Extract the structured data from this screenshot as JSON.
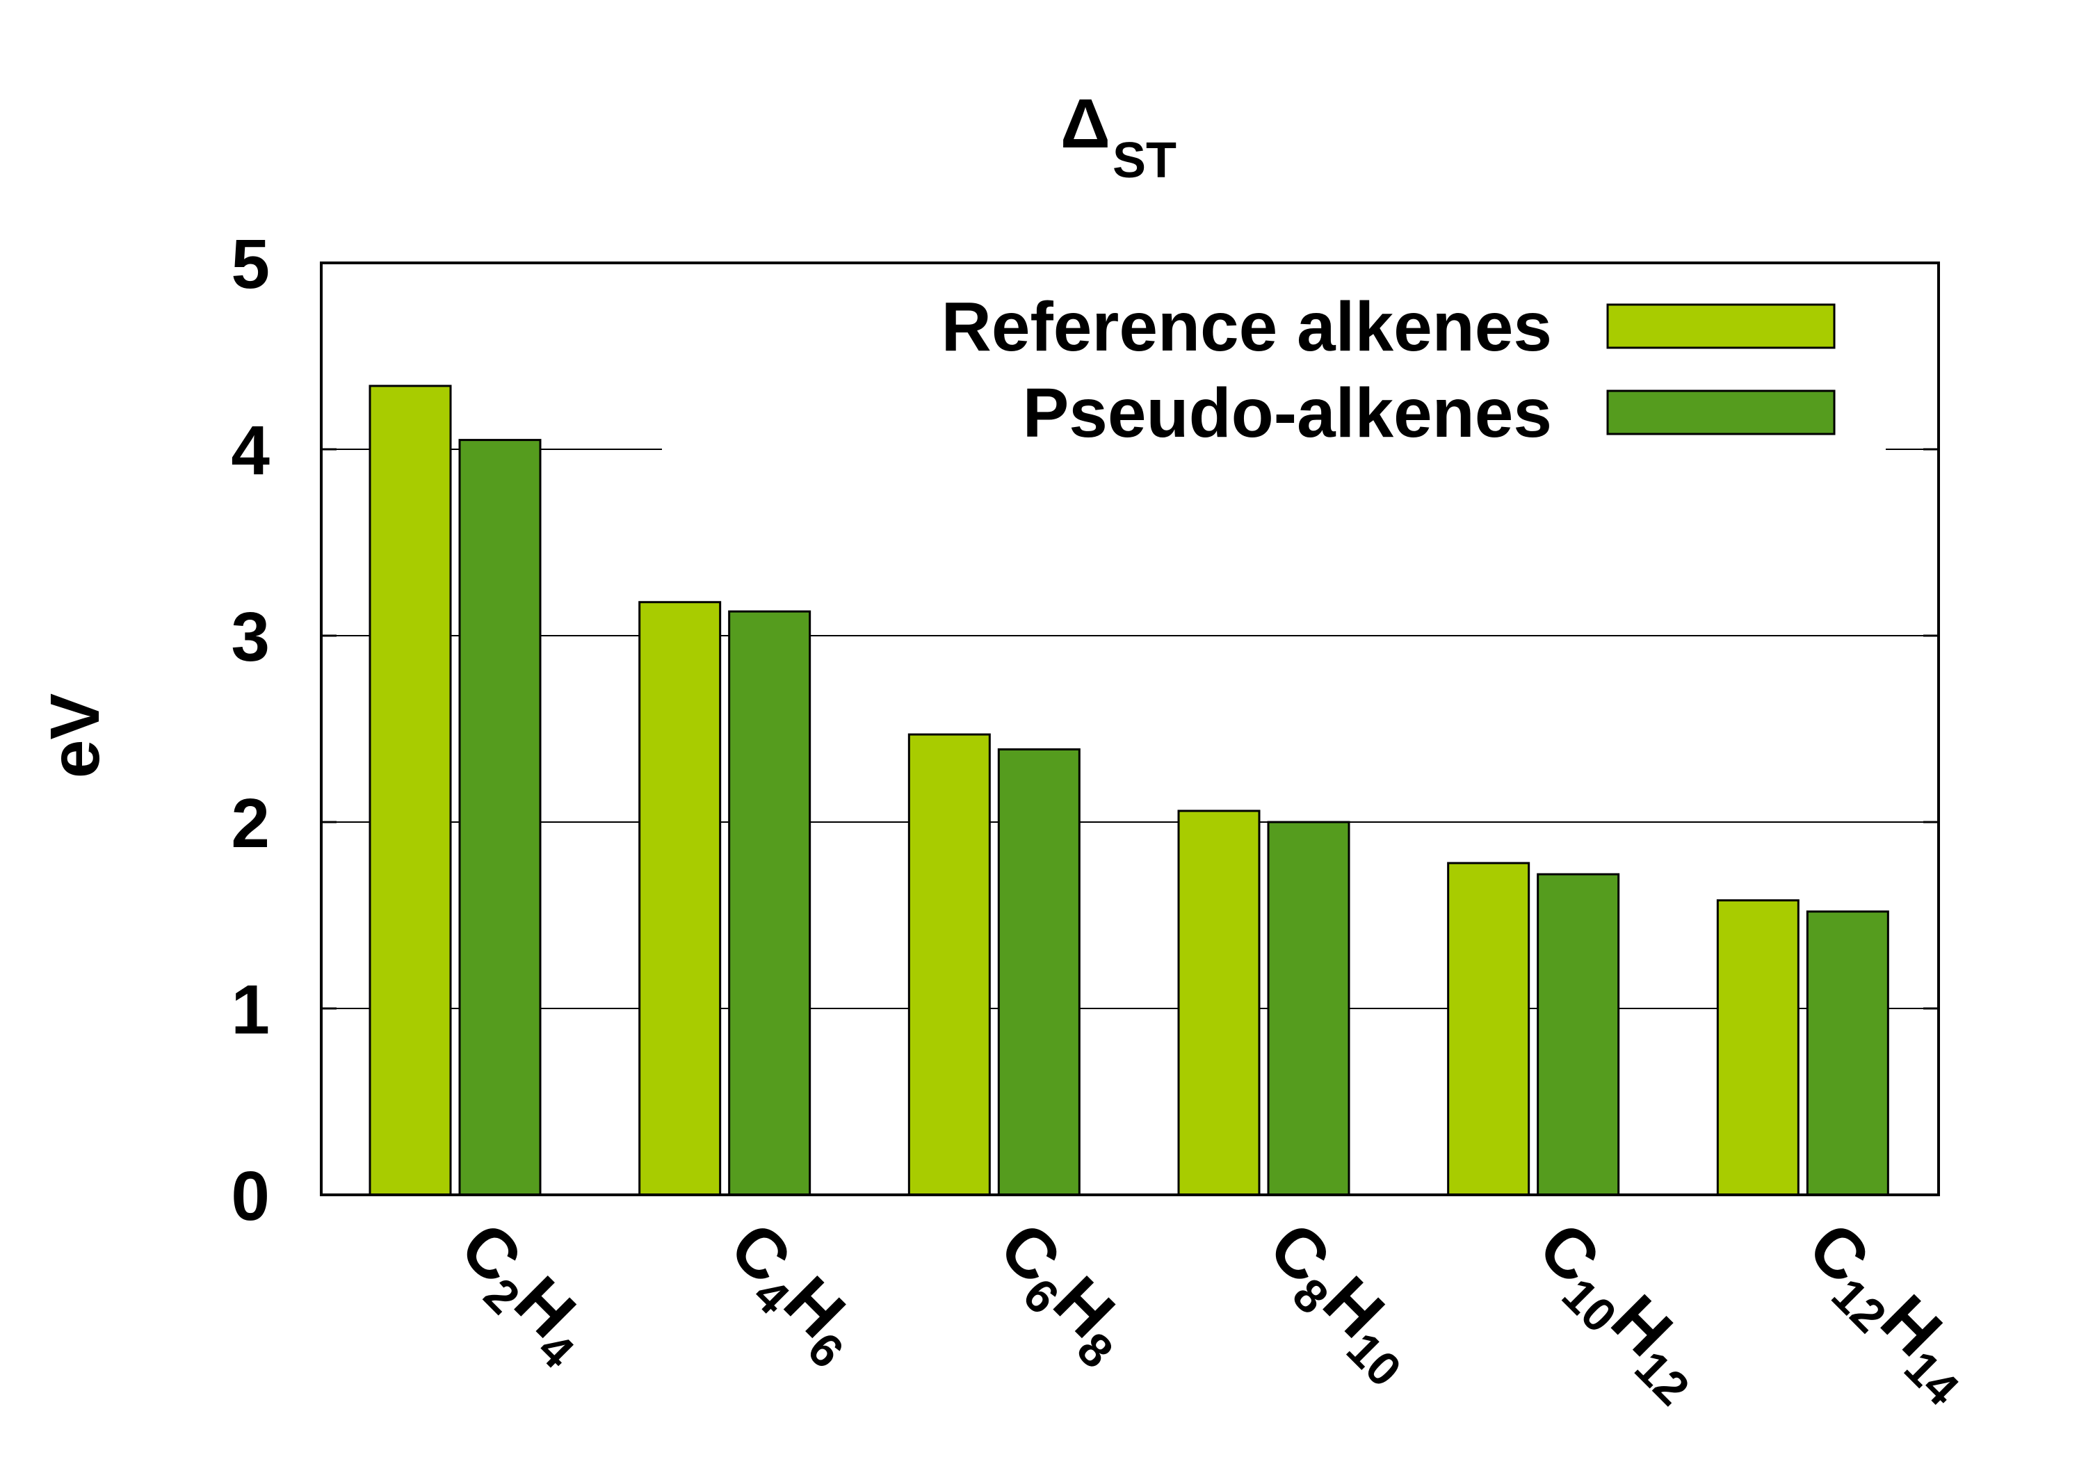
{
  "chart_data": {
    "type": "bar",
    "title": {
      "main": "Δ",
      "sub": "ST"
    },
    "ylabel": "eV",
    "xlabel": "",
    "ylim": [
      0,
      5
    ],
    "yticks": [
      0,
      1,
      2,
      3,
      4,
      5
    ],
    "grid": "horizontal",
    "legend_position": "top-right",
    "categories": [
      {
        "main": "C",
        "sub1": "2",
        "h": "H",
        "sub2": "4",
        "full": "C2H4"
      },
      {
        "main": "C",
        "sub1": "4",
        "h": "H",
        "sub2": "6",
        "full": "C4H6"
      },
      {
        "main": "C",
        "sub1": "6",
        "h": "H",
        "sub2": "8",
        "full": "C6H8"
      },
      {
        "main": "C",
        "sub1": "8",
        "h": "H",
        "sub2": "10",
        "full": "C8H10"
      },
      {
        "main": "C",
        "sub1": "10",
        "h": "H",
        "sub2": "12",
        "full": "C10H12"
      },
      {
        "main": "C",
        "sub1": "12",
        "h": "H",
        "sub2": "14",
        "full": "C12H14"
      }
    ],
    "series": [
      {
        "name": "Reference alkenes",
        "color": "#a8cc00",
        "values": [
          4.34,
          3.18,
          2.47,
          2.06,
          1.78,
          1.58
        ]
      },
      {
        "name": "Pseudo-alkenes",
        "color": "#559c1e",
        "values": [
          4.05,
          3.13,
          2.39,
          2.0,
          1.72,
          1.52
        ]
      }
    ]
  }
}
